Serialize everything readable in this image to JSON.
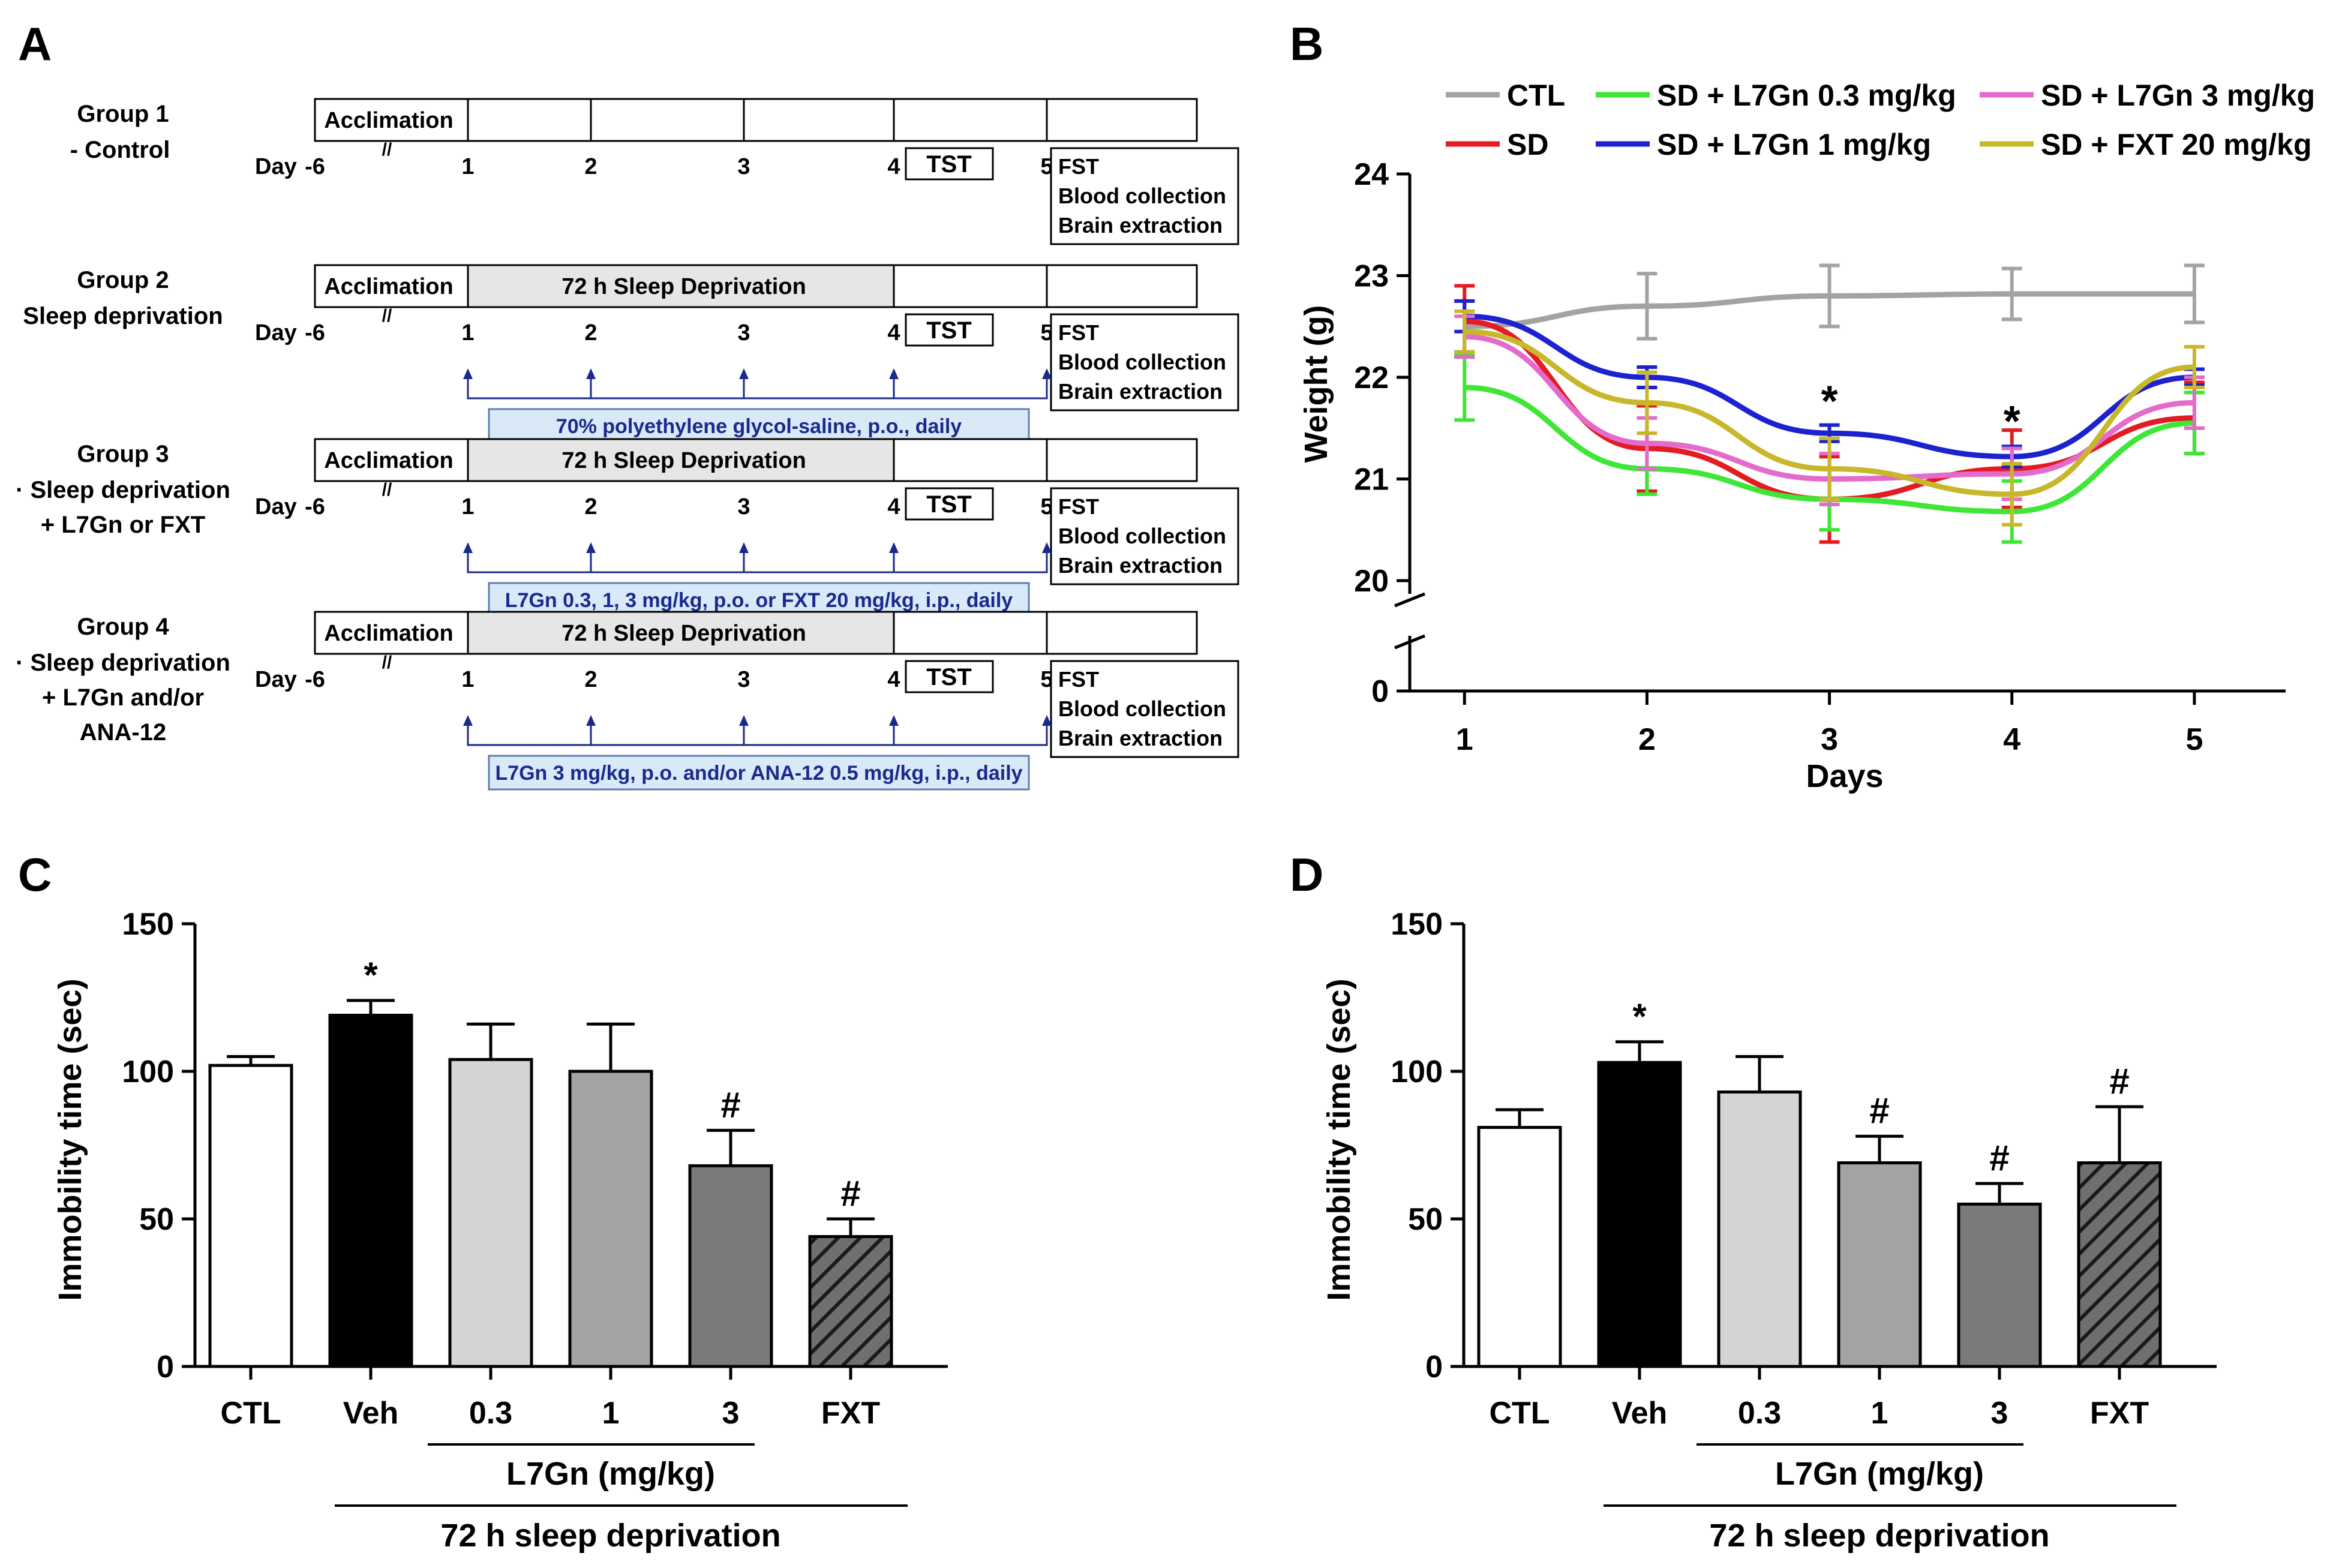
{
  "panels": {
    "a": "A",
    "b": "B",
    "c": "C",
    "d": "D"
  },
  "timeline": {
    "groups": [
      {
        "name": "Group 1",
        "desc": [
          "- Control"
        ],
        "sd": false,
        "note": ""
      },
      {
        "name": "Group 2",
        "desc": [
          "Sleep deprivation"
        ],
        "sd": true,
        "note": "70% polyethylene glycol-saline, p.o., daily"
      },
      {
        "name": "Group 3",
        "desc": [
          "· Sleep deprivation",
          "+ L7Gn or FXT"
        ],
        "sd": true,
        "note": "L7Gn 0.3, 1, 3 mg/kg, p.o. or FXT 20 mg/kg, i.p., daily"
      },
      {
        "name": "Group 4",
        "desc": [
          "· Sleep deprivation",
          "+ L7Gn and/or",
          "ANA-12"
        ],
        "sd": true,
        "note": "L7Gn 3 mg/kg, p.o. and/or ANA-12 0.5 mg/kg, i.p., daily"
      }
    ],
    "acclimation": "Acclimation",
    "break_mark": "//",
    "sd_label": "72 h Sleep Deprivation",
    "day_prefix": "Day",
    "days": [
      "-6",
      "1",
      "2",
      "3",
      "4",
      "5"
    ],
    "tst": "TST",
    "outcomes": [
      "FST",
      "Blood collection",
      "Brain extraction"
    ]
  },
  "chart_data": [
    {
      "type": "line",
      "id": "B",
      "title": "",
      "xlabel": "Days",
      "ylabel": "Weight (g)",
      "x": [
        1,
        2,
        3,
        4,
        5
      ],
      "xlim": [
        0.7,
        5.5
      ],
      "ylim": [
        20,
        24
      ],
      "yticks": [
        20,
        21,
        22,
        23,
        24
      ],
      "extra_ytick": "0",
      "legend_position": "top",
      "series": [
        {
          "name": "CTL",
          "color": "#a3a3a3",
          "values": [
            22.5,
            22.7,
            22.8,
            22.82,
            22.82
          ],
          "err": [
            0.25,
            0.32,
            0.3,
            0.25,
            0.28
          ]
        },
        {
          "name": "SD",
          "color": "#e31b23",
          "values": [
            22.55,
            21.3,
            20.8,
            21.1,
            21.6
          ],
          "err": [
            0.35,
            0.42,
            0.42,
            0.38,
            0.35
          ]
        },
        {
          "name": "SD + L7Gn 0.3 mg/kg",
          "color": "#3ee636",
          "values": [
            21.9,
            21.1,
            20.8,
            20.68,
            21.55
          ],
          "err": [
            0.32,
            0.25,
            0.3,
            0.3,
            0.3
          ]
        },
        {
          "name": "SD + L7Gn 1 mg/kg",
          "color": "#1c22cf",
          "values": [
            22.6,
            22.0,
            21.45,
            21.22,
            22.0
          ],
          "err": [
            0.15,
            0.1,
            0.08,
            0.1,
            0.08
          ]
        },
        {
          "name": "SD + L7Gn 3 mg/kg",
          "color": "#e36bcb",
          "values": [
            22.4,
            21.35,
            21.0,
            21.05,
            21.75
          ],
          "err": [
            0.2,
            0.25,
            0.25,
            0.25,
            0.25
          ]
        },
        {
          "name": "SD + FXT 20 mg/kg",
          "color": "#c8b72a",
          "values": [
            22.45,
            21.75,
            21.1,
            20.85,
            22.1
          ],
          "err": [
            0.2,
            0.3,
            0.3,
            0.3,
            0.2
          ]
        }
      ],
      "annotations": [
        {
          "x": 3,
          "y": 21.55,
          "text": "*"
        },
        {
          "x": 4,
          "y": 21.35,
          "text": "*"
        }
      ]
    },
    {
      "type": "bar",
      "id": "C",
      "title": "",
      "xlabel": "",
      "ylabel": "Immobility time (sec)",
      "categories": [
        "CTL",
        "Veh",
        "0.3",
        "1",
        "3",
        "FXT"
      ],
      "values": [
        102,
        119,
        104,
        100,
        68,
        44
      ],
      "errors": [
        3,
        5,
        12,
        16,
        12,
        6
      ],
      "ylim": [
        0,
        150
      ],
      "yticks": [
        0,
        50,
        100,
        150
      ],
      "fills": [
        "#ffffff",
        "#000000",
        "#d4d4d4",
        "#a3a3a3",
        "#7a7a7a",
        "hatch"
      ],
      "marks": [
        "",
        "*",
        "",
        "",
        "#",
        "#"
      ],
      "bracket_inner": "L7Gn (mg/kg)",
      "bracket_outer": "72 h sleep deprivation"
    },
    {
      "type": "bar",
      "id": "D",
      "title": "",
      "xlabel": "",
      "ylabel": "Immobility time (sec)",
      "categories": [
        "CTL",
        "Veh",
        "0.3",
        "1",
        "3",
        "FXT"
      ],
      "values": [
        81,
        103,
        93,
        69,
        55,
        69
      ],
      "errors": [
        6,
        7,
        12,
        9,
        7,
        19
      ],
      "ylim": [
        0,
        150
      ],
      "yticks": [
        0,
        50,
        100,
        150
      ],
      "fills": [
        "#ffffff",
        "#000000",
        "#d4d4d4",
        "#a3a3a3",
        "#7a7a7a",
        "hatch"
      ],
      "marks": [
        "",
        "*",
        "",
        "#",
        "#",
        "#"
      ],
      "bracket_inner": "L7Gn (mg/kg)",
      "bracket_outer": "72 h sleep deprivation"
    }
  ]
}
